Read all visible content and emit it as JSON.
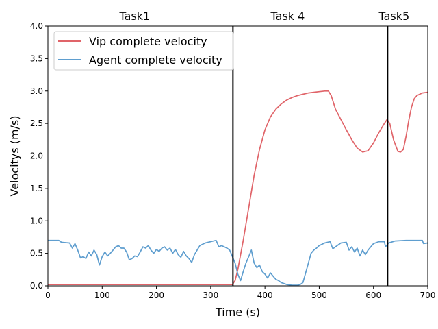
{
  "chart_data": {
    "type": "line",
    "xlabel": "Time (s)",
    "ylabel": "Velocitys (m/s)",
    "xlim": [
      0,
      700
    ],
    "ylim": [
      0,
      4.0
    ],
    "x_ticks": [
      "0",
      "100",
      "200",
      "300",
      "400",
      "500",
      "600",
      "700"
    ],
    "y_ticks": [
      "0.0",
      "0.5",
      "1.0",
      "1.5",
      "2.0",
      "2.5",
      "3.0",
      "3.5",
      "4.0"
    ],
    "grid": false,
    "legend_position": "top-left",
    "task_labels": [
      {
        "label": "Task1",
        "x": 160
      },
      {
        "label": "Task 4",
        "x": 442
      },
      {
        "label": "Task5",
        "x": 638
      }
    ],
    "vlines": [
      341,
      626
    ],
    "series": [
      {
        "name": "Vip complete velocity",
        "color": "#e06469",
        "points": [
          [
            0,
            0.02
          ],
          [
            100,
            0.02
          ],
          [
            200,
            0.02
          ],
          [
            300,
            0.02
          ],
          [
            340,
            0.02
          ],
          [
            345,
            0.08
          ],
          [
            350,
            0.25
          ],
          [
            360,
            0.7
          ],
          [
            370,
            1.2
          ],
          [
            380,
            1.7
          ],
          [
            390,
            2.1
          ],
          [
            400,
            2.4
          ],
          [
            410,
            2.6
          ],
          [
            420,
            2.72
          ],
          [
            430,
            2.8
          ],
          [
            440,
            2.86
          ],
          [
            450,
            2.9
          ],
          [
            460,
            2.93
          ],
          [
            470,
            2.95
          ],
          [
            480,
            2.97
          ],
          [
            490,
            2.98
          ],
          [
            500,
            2.99
          ],
          [
            510,
            3.0
          ],
          [
            517,
            3.0
          ],
          [
            522,
            2.93
          ],
          [
            530,
            2.72
          ],
          [
            540,
            2.56
          ],
          [
            550,
            2.4
          ],
          [
            560,
            2.25
          ],
          [
            570,
            2.12
          ],
          [
            580,
            2.06
          ],
          [
            590,
            2.08
          ],
          [
            600,
            2.2
          ],
          [
            610,
            2.36
          ],
          [
            620,
            2.5
          ],
          [
            625,
            2.56
          ],
          [
            630,
            2.5
          ],
          [
            637,
            2.25
          ],
          [
            645,
            2.07
          ],
          [
            650,
            2.06
          ],
          [
            655,
            2.1
          ],
          [
            660,
            2.3
          ],
          [
            665,
            2.55
          ],
          [
            670,
            2.75
          ],
          [
            675,
            2.88
          ],
          [
            680,
            2.93
          ],
          [
            690,
            2.97
          ],
          [
            700,
            2.98
          ]
        ]
      },
      {
        "name": "Agent complete velocity",
        "color": "#5f9ecf",
        "points": [
          [
            0,
            0.7
          ],
          [
            20,
            0.7
          ],
          [
            25,
            0.67
          ],
          [
            40,
            0.66
          ],
          [
            45,
            0.58
          ],
          [
            50,
            0.65
          ],
          [
            55,
            0.55
          ],
          [
            60,
            0.43
          ],
          [
            65,
            0.45
          ],
          [
            70,
            0.42
          ],
          [
            75,
            0.52
          ],
          [
            80,
            0.46
          ],
          [
            85,
            0.55
          ],
          [
            90,
            0.48
          ],
          [
            95,
            0.32
          ],
          [
            100,
            0.45
          ],
          [
            105,
            0.52
          ],
          [
            110,
            0.46
          ],
          [
            115,
            0.5
          ],
          [
            120,
            0.55
          ],
          [
            125,
            0.6
          ],
          [
            130,
            0.62
          ],
          [
            135,
            0.58
          ],
          [
            140,
            0.58
          ],
          [
            145,
            0.52
          ],
          [
            150,
            0.4
          ],
          [
            155,
            0.42
          ],
          [
            160,
            0.46
          ],
          [
            165,
            0.45
          ],
          [
            170,
            0.52
          ],
          [
            175,
            0.6
          ],
          [
            180,
            0.58
          ],
          [
            185,
            0.62
          ],
          [
            190,
            0.55
          ],
          [
            195,
            0.5
          ],
          [
            200,
            0.56
          ],
          [
            205,
            0.53
          ],
          [
            210,
            0.58
          ],
          [
            215,
            0.6
          ],
          [
            220,
            0.55
          ],
          [
            225,
            0.58
          ],
          [
            230,
            0.5
          ],
          [
            235,
            0.56
          ],
          [
            240,
            0.48
          ],
          [
            245,
            0.44
          ],
          [
            250,
            0.53
          ],
          [
            255,
            0.46
          ],
          [
            260,
            0.42
          ],
          [
            265,
            0.36
          ],
          [
            270,
            0.48
          ],
          [
            275,
            0.55
          ],
          [
            280,
            0.62
          ],
          [
            290,
            0.66
          ],
          [
            300,
            0.68
          ],
          [
            310,
            0.7
          ],
          [
            315,
            0.6
          ],
          [
            320,
            0.62
          ],
          [
            325,
            0.6
          ],
          [
            330,
            0.58
          ],
          [
            335,
            0.55
          ],
          [
            340,
            0.45
          ],
          [
            345,
            0.35
          ],
          [
            350,
            0.18
          ],
          [
            355,
            0.08
          ],
          [
            360,
            0.22
          ],
          [
            365,
            0.35
          ],
          [
            370,
            0.45
          ],
          [
            375,
            0.55
          ],
          [
            380,
            0.35
          ],
          [
            385,
            0.28
          ],
          [
            390,
            0.32
          ],
          [
            395,
            0.22
          ],
          [
            400,
            0.18
          ],
          [
            405,
            0.12
          ],
          [
            410,
            0.2
          ],
          [
            415,
            0.15
          ],
          [
            420,
            0.1
          ],
          [
            425,
            0.08
          ],
          [
            430,
            0.05
          ],
          [
            440,
            0.02
          ],
          [
            450,
            0.01
          ],
          [
            460,
            0.01
          ],
          [
            465,
            0.02
          ],
          [
            470,
            0.05
          ],
          [
            475,
            0.2
          ],
          [
            480,
            0.35
          ],
          [
            485,
            0.5
          ],
          [
            490,
            0.55
          ],
          [
            495,
            0.58
          ],
          [
            500,
            0.62
          ],
          [
            510,
            0.66
          ],
          [
            520,
            0.68
          ],
          [
            525,
            0.57
          ],
          [
            530,
            0.6
          ],
          [
            540,
            0.66
          ],
          [
            550,
            0.67
          ],
          [
            555,
            0.55
          ],
          [
            560,
            0.6
          ],
          [
            565,
            0.52
          ],
          [
            570,
            0.58
          ],
          [
            575,
            0.46
          ],
          [
            580,
            0.55
          ],
          [
            585,
            0.48
          ],
          [
            590,
            0.55
          ],
          [
            595,
            0.6
          ],
          [
            600,
            0.65
          ],
          [
            610,
            0.68
          ],
          [
            620,
            0.68
          ],
          [
            622,
            0.6
          ],
          [
            628,
            0.66
          ],
          [
            640,
            0.69
          ],
          [
            660,
            0.7
          ],
          [
            680,
            0.7
          ],
          [
            690,
            0.7
          ],
          [
            692,
            0.65
          ],
          [
            700,
            0.66
          ]
        ]
      }
    ]
  }
}
